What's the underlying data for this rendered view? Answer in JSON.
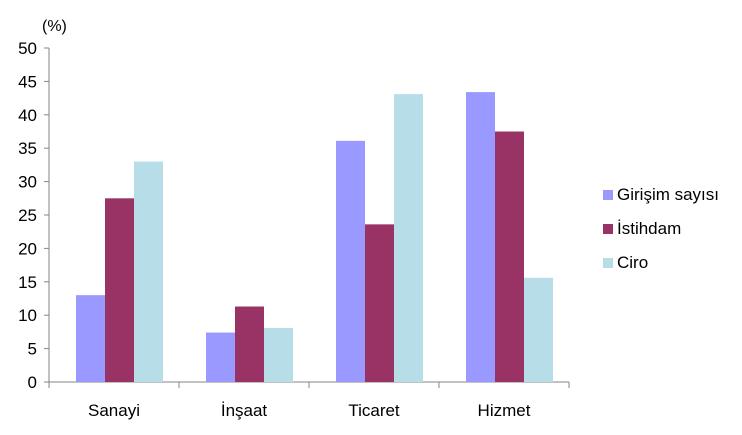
{
  "chart_data": {
    "type": "bar",
    "unit_label": "(%)",
    "categories": [
      "Sanayi",
      "İnşaat",
      "Ticaret",
      "Hizmet"
    ],
    "series": [
      {
        "name": "Girişim sayısı",
        "color": "#9999ff",
        "values": [
          13,
          7.4,
          36.1,
          43.4
        ]
      },
      {
        "name": "İstihdam",
        "color": "#993366",
        "values": [
          27.5,
          11.3,
          23.6,
          37.5
        ]
      },
      {
        "name": "Ciro",
        "color": "#b7dee8",
        "values": [
          33,
          8.1,
          43.1,
          15.6
        ]
      }
    ],
    "ylim": [
      0,
      50
    ],
    "yticks": [
      0,
      5,
      10,
      15,
      20,
      25,
      30,
      35,
      40,
      45,
      50
    ],
    "grid": false,
    "legend_position": "right"
  }
}
